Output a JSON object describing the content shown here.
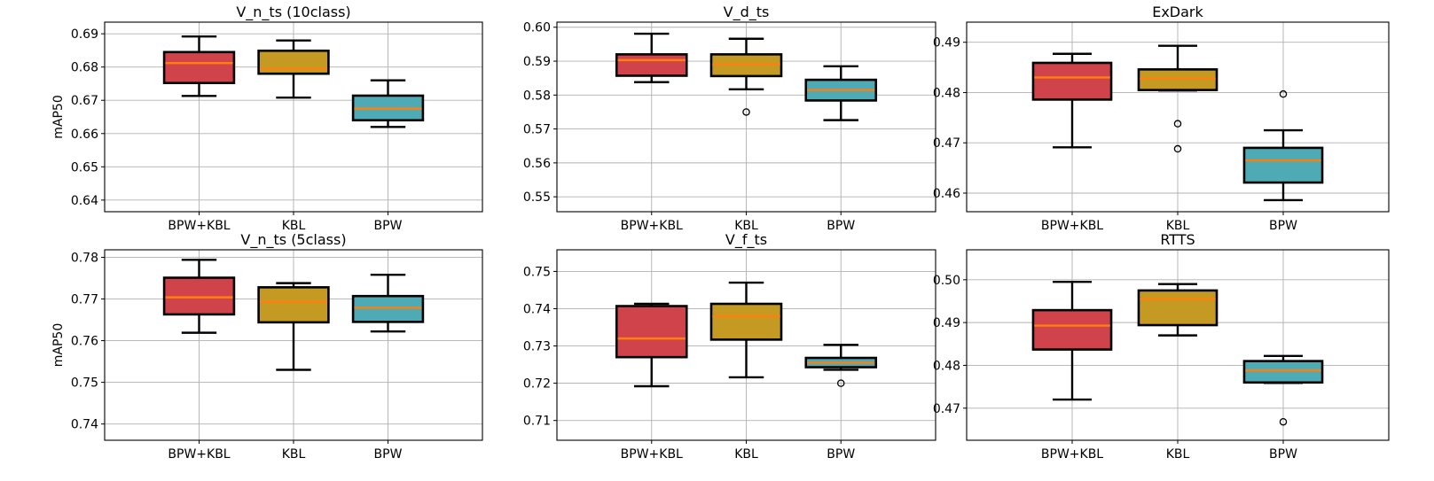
{
  "palette": {
    "BPW+KBL": "#d1434b",
    "KBL": "#c49a23",
    "BPW": "#4eaab5",
    "median": "#ff7f0e",
    "grid": "#b0b0b0"
  },
  "chart_data": [
    {
      "type": "box",
      "title": "V_n_ts (10class)",
      "ylabel": "mAP50",
      "categories": [
        "BPW+KBL",
        "KBL",
        "BPW"
      ],
      "ylim": [
        0.6365,
        0.6935
      ],
      "yticks": [
        0.64,
        0.65,
        0.66,
        0.67,
        0.68,
        0.69
      ],
      "ytick_labels": [
        "0.64",
        "0.65",
        "0.66",
        "0.67",
        "0.68",
        "0.69"
      ],
      "boxes": [
        {
          "whislo": 0.6713,
          "q1": 0.6752,
          "med": 0.6812,
          "q3": 0.6845,
          "whishi": 0.6892,
          "fliers": []
        },
        {
          "whislo": 0.6708,
          "q1": 0.678,
          "med": 0.6795,
          "q3": 0.6849,
          "whishi": 0.688,
          "fliers": []
        },
        {
          "whislo": 0.662,
          "q1": 0.664,
          "med": 0.6675,
          "q3": 0.6714,
          "whishi": 0.676,
          "fliers": []
        }
      ]
    },
    {
      "type": "box",
      "title": "V_d_ts",
      "ylabel": "",
      "categories": [
        "BPW+KBL",
        "KBL",
        "BPW"
      ],
      "ylim": [
        0.5456,
        0.6015
      ],
      "yticks": [
        0.55,
        0.56,
        0.57,
        0.58,
        0.59,
        0.6
      ],
      "ytick_labels": [
        "0.55",
        "0.56",
        "0.57",
        "0.58",
        "0.59",
        "0.60"
      ],
      "boxes": [
        {
          "whislo": 0.5838,
          "q1": 0.5857,
          "med": 0.5903,
          "q3": 0.592,
          "whishi": 0.5981,
          "fliers": []
        },
        {
          "whislo": 0.5817,
          "q1": 0.5856,
          "med": 0.5891,
          "q3": 0.592,
          "whishi": 0.5966,
          "fliers": [
            0.575
          ]
        },
        {
          "whislo": 0.5726,
          "q1": 0.5784,
          "med": 0.5815,
          "q3": 0.5845,
          "whishi": 0.5885,
          "fliers": []
        }
      ]
    },
    {
      "type": "box",
      "title": "ExDark",
      "ylabel": "",
      "categories": [
        "BPW+KBL",
        "KBL",
        "BPW"
      ],
      "ylim": [
        0.4563,
        0.494
      ],
      "yticks": [
        0.46,
        0.47,
        0.48,
        0.49
      ],
      "ytick_labels": [
        "0.46",
        "0.47",
        "0.48",
        "0.49"
      ],
      "boxes": [
        {
          "whislo": 0.4691,
          "q1": 0.4786,
          "med": 0.483,
          "q3": 0.4859,
          "whishi": 0.4877,
          "fliers": []
        },
        {
          "whislo": 0.4804,
          "q1": 0.4805,
          "med": 0.4828,
          "q3": 0.4846,
          "whishi": 0.4893,
          "fliers": [
            0.4738,
            0.4688
          ]
        },
        {
          "whislo": 0.4586,
          "q1": 0.4621,
          "med": 0.4665,
          "q3": 0.469,
          "whishi": 0.4725,
          "fliers": [
            0.4797
          ]
        }
      ]
    },
    {
      "type": "box",
      "title": "V_n_ts (5class)",
      "ylabel": "mAP50",
      "categories": [
        "BPW+KBL",
        "KBL",
        "BPW"
      ],
      "ylim": [
        0.7361,
        0.7818
      ],
      "yticks": [
        0.74,
        0.75,
        0.76,
        0.77,
        0.78
      ],
      "ytick_labels": [
        "0.74",
        "0.75",
        "0.76",
        "0.77",
        "0.78"
      ],
      "boxes": [
        {
          "whislo": 0.7619,
          "q1": 0.7663,
          "med": 0.7704,
          "q3": 0.7751,
          "whishi": 0.7794,
          "fliers": []
        },
        {
          "whislo": 0.753,
          "q1": 0.7644,
          "med": 0.7693,
          "q3": 0.7728,
          "whishi": 0.7738,
          "fliers": []
        },
        {
          "whislo": 0.7622,
          "q1": 0.7645,
          "med": 0.7679,
          "q3": 0.7707,
          "whishi": 0.7758,
          "fliers": []
        }
      ]
    },
    {
      "type": "box",
      "title": "V_f_ts",
      "ylabel": "",
      "categories": [
        "BPW+KBL",
        "KBL",
        "BPW"
      ],
      "ylim": [
        0.7047,
        0.7558
      ],
      "yticks": [
        0.71,
        0.72,
        0.73,
        0.74,
        0.75
      ],
      "ytick_labels": [
        "0.71",
        "0.72",
        "0.73",
        "0.74",
        "0.75"
      ],
      "boxes": [
        {
          "whislo": 0.7192,
          "q1": 0.727,
          "med": 0.732,
          "q3": 0.7407,
          "whishi": 0.7413,
          "fliers": []
        },
        {
          "whislo": 0.7216,
          "q1": 0.7317,
          "med": 0.738,
          "q3": 0.7413,
          "whishi": 0.747,
          "fliers": []
        },
        {
          "whislo": 0.7236,
          "q1": 0.7243,
          "med": 0.7255,
          "q3": 0.7268,
          "whishi": 0.7303,
          "fliers": [
            0.72
          ]
        }
      ]
    },
    {
      "type": "box",
      "title": "RTTS",
      "ylabel": "",
      "categories": [
        "BPW+KBL",
        "KBL",
        "BPW"
      ],
      "ylim": [
        0.4625,
        0.507
      ],
      "yticks": [
        0.47,
        0.48,
        0.49,
        0.5
      ],
      "ytick_labels": [
        "0.47",
        "0.48",
        "0.49",
        "0.50"
      ],
      "boxes": [
        {
          "whislo": 0.472,
          "q1": 0.4837,
          "med": 0.4893,
          "q3": 0.4929,
          "whishi": 0.4995,
          "fliers": []
        },
        {
          "whislo": 0.487,
          "q1": 0.4894,
          "med": 0.4955,
          "q3": 0.4975,
          "whishi": 0.499,
          "fliers": []
        },
        {
          "whislo": 0.4759,
          "q1": 0.476,
          "med": 0.4788,
          "q3": 0.481,
          "whishi": 0.4822,
          "fliers": [
            0.4668
          ]
        }
      ]
    }
  ]
}
